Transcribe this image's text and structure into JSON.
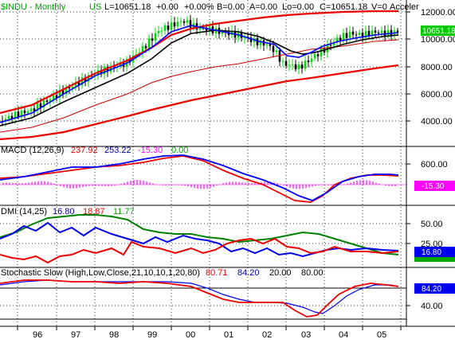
{
  "colors": {
    "price_header": "#00a000",
    "up_bar": "#00dd00",
    "down_bar": "#000000",
    "ma_black": "#000000",
    "ma_blue": "#0000ff",
    "envelope_red": "#ee0000",
    "thin_red": "#cc0000",
    "green_line": "#008000",
    "magenta": "#ff00ff",
    "label_blue": "#0000aa",
    "label_red": "#dd0000",
    "label_green": "#00aa00"
  },
  "price_panel": {
    "header": {
      "symbol": "$INDU - Monthly",
      "exchange": "US",
      "fields": [
        {
          "text": "L=10651.18",
          "color": "#000000"
        },
        {
          "text": "+0.00",
          "color": "#000000"
        },
        {
          "text": "+0.00%",
          "color": "#000000"
        },
        {
          "text": "B=0.00",
          "color": "#000000"
        },
        {
          "text": "A=0.00",
          "color": "#000000"
        },
        {
          "text": "Lo=0.00",
          "color": "#000000"
        },
        {
          "text": "C=10651.18",
          "color": "#000000"
        },
        {
          "text": "V=0",
          "color": "#000000"
        },
        {
          "text": "Acceler",
          "color": "#000000"
        }
      ]
    },
    "y_ticks": [
      "12000.00",
      "10000.00",
      "8000.00",
      "6000.00",
      "4000.00"
    ],
    "last_value_label": "10651.18"
  },
  "macd_panel": {
    "title": "MACD (12,26,9)",
    "values": [
      {
        "text": "237.92",
        "color": "#dd0000"
      },
      {
        "text": "253.22",
        "color": "#0000aa"
      },
      {
        "text": "-15.30",
        "color": "#ff00ff"
      },
      {
        "text": "0.00",
        "color": "#00aa00"
      }
    ],
    "y_ticks": [
      "600.00"
    ],
    "last_value_label": "-15.30"
  },
  "dmi_panel": {
    "title": "DMI (14,25)",
    "values": [
      {
        "text": "16.80",
        "color": "#0000aa"
      },
      {
        "text": "18.87",
        "color": "#dd0000"
      },
      {
        "text": "11.77",
        "color": "#00aa00"
      }
    ],
    "y_ticks": [
      "50.00",
      "25.00"
    ],
    "last_value_label": "16.80"
  },
  "stoch_panel": {
    "title": "Stochastic Slow (High,Low,Close,21,10,10,1,20,80)",
    "values": [
      {
        "text": "80.71",
        "color": "#dd0000"
      },
      {
        "text": "84.20",
        "color": "#0000aa"
      },
      {
        "text": "20.00",
        "color": "#000000"
      },
      {
        "text": "80.00",
        "color": "#000000"
      }
    ],
    "y_ticks": [
      "40.00"
    ],
    "last_value_label": "84.20"
  },
  "x_axis": {
    "labels": [
      "96",
      "97",
      "98",
      "99",
      "00",
      "01",
      "02",
      "03",
      "04",
      "05"
    ]
  }
}
